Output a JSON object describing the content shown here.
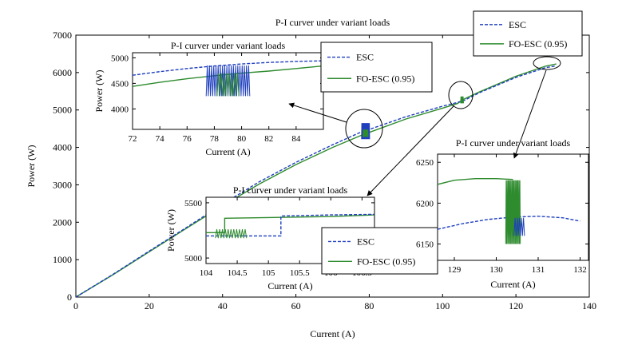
{
  "chart_data": [
    {
      "id": "main",
      "type": "line",
      "title": "P-I curver under variant loads",
      "xlabel": "Current (A)",
      "ylabel": "Power (W)",
      "xlim": [
        0,
        140
      ],
      "ylim": [
        0,
        7000
      ],
      "xticks": [
        0,
        20,
        40,
        60,
        80,
        100,
        120,
        140
      ],
      "yticks": [
        0,
        1000,
        2000,
        3000,
        4000,
        5000,
        6000,
        7000
      ],
      "legend": "top-right",
      "series": [
        {
          "name": "ESC",
          "color": "#1f3fbf",
          "style": "dashed",
          "x": [
            0,
            10,
            20,
            30,
            40,
            50,
            60,
            70,
            78,
            80,
            90,
            100,
            104,
            106,
            110,
            120,
            128,
            131
          ],
          "y": [
            0,
            600,
            1230,
            1850,
            2480,
            3080,
            3600,
            4070,
            4420,
            4480,
            4820,
            5100,
            5200,
            5260,
            5460,
            5870,
            6130,
            6180
          ]
        },
        {
          "name": "FO-ESC (0.95)",
          "color": "#2e8b2e",
          "style": "solid",
          "x": [
            0,
            10,
            20,
            30,
            40,
            50,
            60,
            70,
            78,
            80,
            90,
            100,
            104,
            106,
            110,
            120,
            128,
            131
          ],
          "y": [
            0,
            590,
            1210,
            1830,
            2440,
            3020,
            3540,
            4000,
            4330,
            4400,
            4760,
            5050,
            5170,
            5300,
            5480,
            5900,
            6170,
            6230
          ]
        }
      ]
    },
    {
      "id": "inset1",
      "type": "line",
      "title": "P-I curver under variant loads",
      "xlabel": "Current (A)",
      "ylabel": "Power (W)",
      "xlim": [
        72,
        86
      ],
      "ylim": [
        3600,
        5100
      ],
      "xticks": [
        72,
        74,
        76,
        78,
        80,
        82,
        84
      ],
      "yticks": [
        4000,
        4500,
        5000
      ],
      "legend": "top-right",
      "series": [
        {
          "name": "ESC",
          "color": "#1f3fbf",
          "style": "dashed",
          "x": [
            72,
            74,
            76,
            78,
            80,
            82,
            84,
            86
          ],
          "y": [
            4660,
            4730,
            4790,
            4840,
            4880,
            4910,
            4930,
            4940
          ]
        },
        {
          "name": "FO-ESC (0.95)",
          "color": "#2e8b2e",
          "style": "solid",
          "x": [
            72,
            74,
            76,
            78,
            80,
            82,
            84,
            86
          ],
          "y": [
            4440,
            4520,
            4590,
            4650,
            4700,
            4740,
            4790,
            4840
          ]
        }
      ]
    },
    {
      "id": "inset2",
      "type": "line",
      "title": "P-I curver under variant loads",
      "xlabel": "Current (A)",
      "ylabel": "Power (W)",
      "xlim": [
        104,
        106.7
      ],
      "ylim": [
        4950,
        5550
      ],
      "xticks": [
        104,
        104.5,
        105,
        105.5,
        106,
        106.5
      ],
      "yticks": [
        5000,
        5500
      ],
      "legend": "bottom-right",
      "series": [
        {
          "name": "ESC",
          "color": "#1f3fbf",
          "style": "dashed",
          "x": [
            104,
            104.5,
            105,
            105.2,
            105.2,
            106,
            106.7
          ],
          "y": [
            5200,
            5200,
            5200,
            5200,
            5380,
            5390,
            5395
          ]
        },
        {
          "name": "FO-ESC (0.95)",
          "color": "#2e8b2e",
          "style": "solid",
          "x": [
            104,
            104.3,
            104.3,
            106,
            106.7
          ],
          "y": [
            5230,
            5230,
            5360,
            5375,
            5390
          ]
        }
      ]
    },
    {
      "id": "inset3",
      "type": "line",
      "title": "P-I curver under variant loads",
      "xlabel": "Current (A)",
      "ylabel": "",
      "xlim": [
        128.6,
        132.2
      ],
      "ylim": [
        6130,
        6260
      ],
      "xticks": [
        129,
        130,
        131,
        132
      ],
      "yticks": [
        6150,
        6200,
        6250
      ],
      "legend": "none",
      "series": [
        {
          "name": "ESC",
          "color": "#1f3fbf",
          "style": "dashed",
          "x": [
            128.6,
            129.2,
            129.8,
            130.4,
            131.0,
            131.6,
            132.0
          ],
          "y": [
            6168,
            6175,
            6180,
            6183,
            6184,
            6182,
            6178
          ]
        },
        {
          "name": "FO-ESC (0.95)",
          "color": "#2e8b2e",
          "style": "solid",
          "x": [
            128.6,
            129.0,
            129.5,
            130.0,
            130.4
          ],
          "y": [
            6223,
            6228,
            6230,
            6230,
            6229
          ]
        }
      ]
    }
  ],
  "legends": {
    "esc": "ESC",
    "fo": "FO-ESC (0.95)"
  }
}
